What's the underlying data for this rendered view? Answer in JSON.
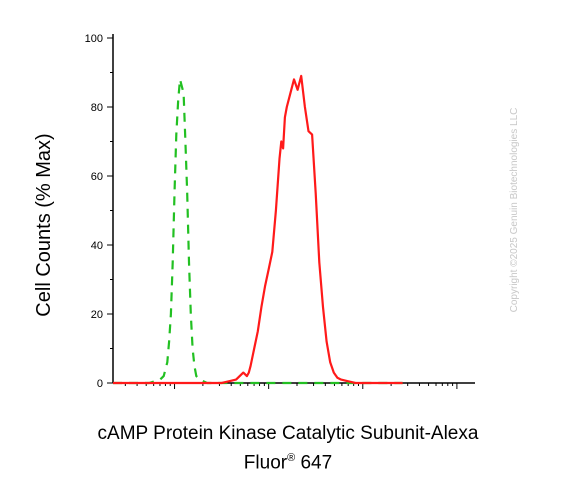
{
  "chart_data": {
    "type": "line",
    "title": "",
    "ylabel": "Cell Counts (% Max)",
    "xlabel_main": "cAMP Protein Kinase Catalytic Subunit-Alexa",
    "xlabel_line2": "Fluor",
    "xlabel_sup": "®",
    "xlabel_line2_end": " 647",
    "ylim": [
      0,
      100
    ],
    "yticks": [
      "0",
      "20",
      "40",
      "60",
      "80",
      "100"
    ],
    "x_scale": "log (unlabeled)",
    "grid": false,
    "series": [
      {
        "style": "dashed",
        "color": "#22c022",
        "points": [
          [
            0.0,
            0
          ],
          [
            0.1,
            0
          ],
          [
            0.13,
            1
          ],
          [
            0.14,
            2
          ],
          [
            0.15,
            6
          ],
          [
            0.155,
            12
          ],
          [
            0.16,
            20
          ],
          [
            0.165,
            35
          ],
          [
            0.17,
            55
          ],
          [
            0.175,
            72
          ],
          [
            0.18,
            82
          ],
          [
            0.185,
            88
          ],
          [
            0.19,
            86
          ],
          [
            0.195,
            84
          ],
          [
            0.2,
            70
          ],
          [
            0.205,
            55
          ],
          [
            0.21,
            35
          ],
          [
            0.215,
            20
          ],
          [
            0.22,
            10
          ],
          [
            0.225,
            5
          ],
          [
            0.23,
            2
          ],
          [
            0.24,
            1
          ],
          [
            0.26,
            0
          ],
          [
            0.5,
            0
          ],
          [
            0.7,
            0
          ],
          [
            0.8,
            0
          ]
        ]
      },
      {
        "style": "solid",
        "color": "#ff1a1a",
        "points": [
          [
            0.0,
            0
          ],
          [
            0.3,
            0
          ],
          [
            0.32,
            0.5
          ],
          [
            0.34,
            1
          ],
          [
            0.35,
            2
          ],
          [
            0.36,
            3
          ],
          [
            0.37,
            2
          ],
          [
            0.375,
            3
          ],
          [
            0.38,
            5
          ],
          [
            0.39,
            10
          ],
          [
            0.4,
            15
          ],
          [
            0.41,
            22
          ],
          [
            0.42,
            28
          ],
          [
            0.43,
            33
          ],
          [
            0.44,
            38
          ],
          [
            0.45,
            50
          ],
          [
            0.46,
            65
          ],
          [
            0.465,
            70
          ],
          [
            0.47,
            68
          ],
          [
            0.475,
            77
          ],
          [
            0.48,
            80
          ],
          [
            0.49,
            84
          ],
          [
            0.5,
            88
          ],
          [
            0.51,
            85
          ],
          [
            0.52,
            89
          ],
          [
            0.53,
            80
          ],
          [
            0.54,
            73
          ],
          [
            0.55,
            72
          ],
          [
            0.56,
            55
          ],
          [
            0.57,
            35
          ],
          [
            0.58,
            22
          ],
          [
            0.59,
            12
          ],
          [
            0.6,
            6
          ],
          [
            0.61,
            3
          ],
          [
            0.62,
            1.5
          ],
          [
            0.63,
            1
          ],
          [
            0.65,
            0.5
          ],
          [
            0.67,
            0
          ],
          [
            0.8,
            0
          ]
        ]
      }
    ]
  },
  "watermark": "Copyright ©2025 Genuin Biotechnologies LLC"
}
